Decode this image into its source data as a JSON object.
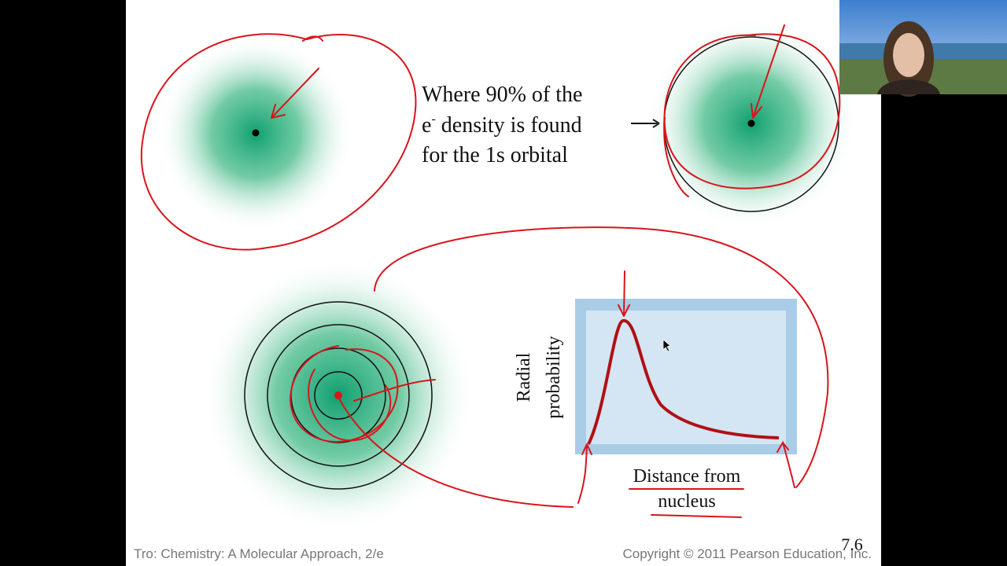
{
  "caption": {
    "line1": "Where 90% of the",
    "line2_base": "e",
    "line2_sup": "-",
    "line2_rest": " density is found",
    "line3": "for the 1s orbital"
  },
  "graph": {
    "y_label_1": "Radial",
    "y_label_2": "probability",
    "x_label_1": "Distance from",
    "x_label_2": "nucleus"
  },
  "footer": {
    "left": "Tro: Chemistry: A Molecular Approach, 2/e",
    "right": "Copyright © 2011 Pearson Education, Inc."
  },
  "slide_number": "7.6"
}
